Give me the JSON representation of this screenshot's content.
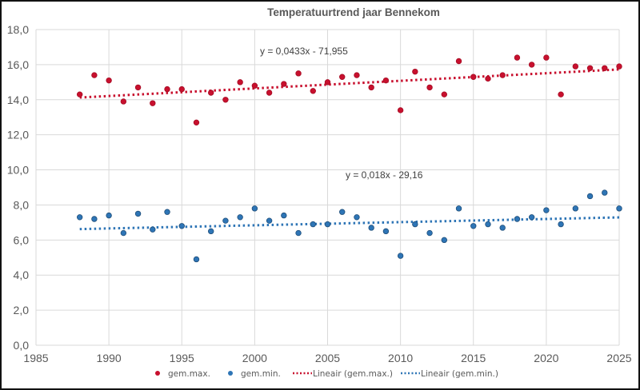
{
  "chart_data": {
    "type": "scatter",
    "title": "Temperatuurtrend jaar Bennekom",
    "xlabel": "",
    "ylabel": "",
    "xlim": [
      1985,
      2025
    ],
    "ylim": [
      0,
      18
    ],
    "grid": true,
    "x_ticks": [
      1985,
      1990,
      1995,
      2000,
      2005,
      2010,
      2015,
      2020,
      2025
    ],
    "x_tick_labels": [
      "1985",
      "1990",
      "1995",
      "2000",
      "2005",
      "2010",
      "2015",
      "2020",
      "2025"
    ],
    "y_ticks": [
      0,
      2,
      4,
      6,
      8,
      10,
      12,
      14,
      16,
      18
    ],
    "y_tick_labels": [
      "0,0",
      "2,0",
      "4,0",
      "6,0",
      "8,0",
      "10,0",
      "12,0",
      "14,0",
      "16,0",
      "18,0"
    ],
    "x": [
      1988,
      1989,
      1990,
      1991,
      1992,
      1993,
      1994,
      1995,
      1996,
      1997,
      1998,
      1999,
      2000,
      2001,
      2002,
      2003,
      2004,
      2005,
      2006,
      2007,
      2008,
      2009,
      2010,
      2011,
      2012,
      2013,
      2014,
      2015,
      2016,
      2017,
      2018,
      2019,
      2020,
      2021,
      2022,
      2023,
      2024,
      2025
    ],
    "series": [
      {
        "name": "gem.max.",
        "color": "#c8102e",
        "values": [
          14.3,
          15.4,
          15.1,
          13.9,
          14.7,
          13.8,
          14.6,
          14.6,
          12.7,
          14.4,
          14.0,
          15.0,
          14.8,
          14.4,
          14.9,
          15.5,
          14.5,
          15.0,
          15.3,
          15.4,
          14.7,
          15.1,
          13.4,
          15.6,
          14.7,
          14.3,
          16.2,
          15.3,
          15.2,
          15.4,
          16.4,
          16.0,
          16.4,
          14.3,
          15.9,
          15.8,
          15.8,
          15.9
        ]
      },
      {
        "name": "gem.min.",
        "color": "#2e75b6",
        "values": [
          7.3,
          7.2,
          7.4,
          6.4,
          7.5,
          6.6,
          7.6,
          6.8,
          4.9,
          6.5,
          7.1,
          7.3,
          7.8,
          7.1,
          7.4,
          6.4,
          6.9,
          6.9,
          7.6,
          7.3,
          6.7,
          6.5,
          5.1,
          6.9,
          6.4,
          6.0,
          7.8,
          6.8,
          6.9,
          6.7,
          7.2,
          7.3,
          7.7,
          6.9,
          7.8,
          8.5,
          8.7,
          7.8
        ]
      }
    ],
    "trendlines": [
      {
        "name": "Lineair (gem.max.)",
        "series": "gem.max.",
        "color": "#c8102e",
        "slope": 0.0433,
        "intercept": -71.955,
        "equation": "y = 0,0433x - 71,955",
        "x_range": [
          1988,
          2025
        ]
      },
      {
        "name": "Lineair (gem.min.)",
        "series": "gem.min.",
        "color": "#2e75b6",
        "slope": 0.018,
        "intercept": -29.16,
        "equation": "y = 0,018x - 29,16",
        "x_range": [
          1988,
          2025
        ]
      }
    ],
    "legend": {
      "position": "bottom",
      "entries": [
        "gem.max.",
        "gem.min.",
        "Lineair (gem.max.)",
        "Lineair (gem.min.)"
      ]
    }
  }
}
